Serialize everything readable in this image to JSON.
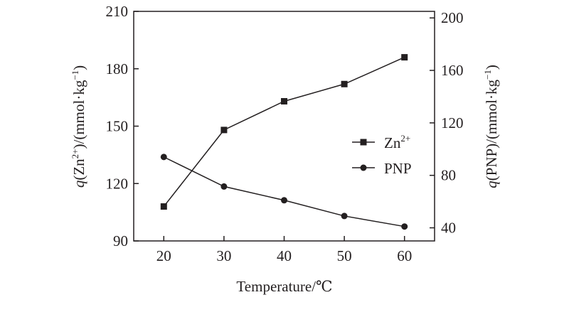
{
  "chart_data": {
    "type": "line",
    "xlabel": "Temperature/℃",
    "ylabel_left": {
      "base": "q",
      "pre": "(Zn",
      "sup": "2+",
      "post": ")/(mmol·kg",
      "unit_sup": "−1",
      "close": ")"
    },
    "ylabel_right": {
      "base": "q",
      "post": "(PNP)/(mmol·kg",
      "unit_sup": "−1",
      "close": ")"
    },
    "x": [
      20,
      30,
      40,
      50,
      60
    ],
    "x_ticks": [
      "20",
      "30",
      "40",
      "50",
      "60"
    ],
    "xlim": [
      15,
      65
    ],
    "y_left_ticks": [
      "90",
      "120",
      "150",
      "180",
      "210"
    ],
    "ylim_left": [
      90,
      210
    ],
    "y_right_ticks": [
      "40",
      "80",
      "120",
      "160",
      "200"
    ],
    "ylim_right": [
      30,
      205
    ],
    "grid": false,
    "legend_position": "right-middle",
    "series": [
      {
        "name": "Zn",
        "name_sup": "2+",
        "marker": "square",
        "axis": "left",
        "values": [
          108,
          148,
          163,
          172,
          186
        ]
      },
      {
        "name": "PNP",
        "name_sup": "",
        "marker": "circle",
        "axis": "right",
        "values": [
          94,
          71.5,
          61,
          49,
          41
        ]
      }
    ],
    "color": "#231f20"
  }
}
